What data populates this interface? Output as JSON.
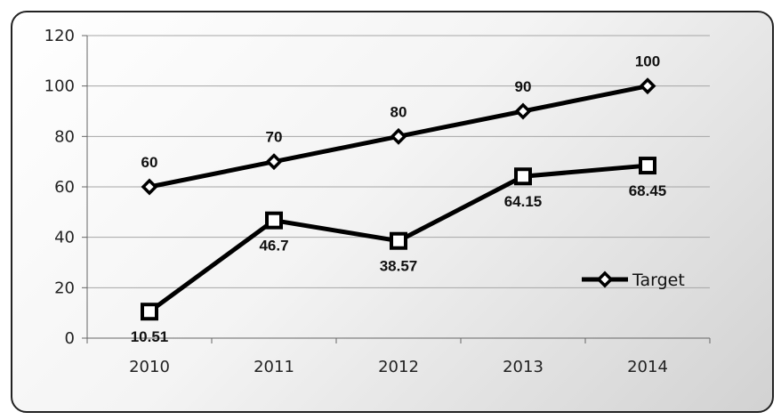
{
  "chart_data": {
    "type": "line",
    "title": "",
    "xlabel": "",
    "ylabel": "",
    "categories": [
      "2010",
      "2011",
      "2012",
      "2013",
      "2014"
    ],
    "ylim": [
      0,
      120
    ],
    "yticks": [
      0,
      20,
      40,
      60,
      80,
      100,
      120
    ],
    "grid": true,
    "legend_position": "right",
    "series": [
      {
        "name": "Target",
        "marker": "diamond",
        "values": [
          60,
          70,
          80,
          90,
          100
        ],
        "labels": [
          "60",
          "70",
          "80",
          "90",
          "100"
        ],
        "label_position": "above",
        "in_legend": true
      },
      {
        "marker": "square",
        "values": [
          10.51,
          46.7,
          38.57,
          64.15,
          68.45
        ],
        "labels": [
          "10.51",
          "46.7",
          "38.57",
          "64.15",
          "68.45"
        ],
        "label_position": "below",
        "in_legend": false
      }
    ],
    "colors": {
      "line": "#000000",
      "grid": "#a6a6a6",
      "marker_fill": "#ffffff"
    }
  }
}
